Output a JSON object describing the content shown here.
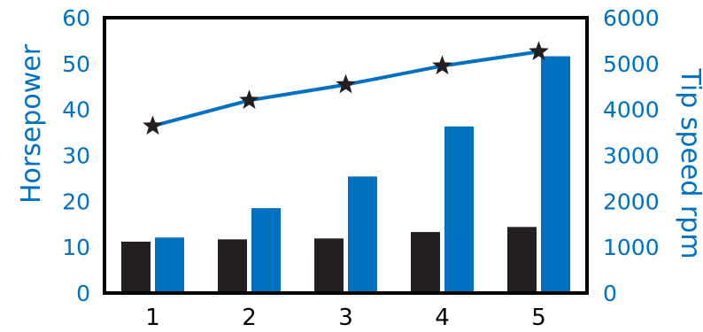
{
  "chart_data": {
    "type": "bar",
    "categories": [
      "1",
      "2",
      "3",
      "4",
      "5"
    ],
    "left_axis": {
      "label": "Horsepower",
      "ylim": [
        0,
        60
      ],
      "ticks": [
        "0",
        "10",
        "20",
        "30",
        "40",
        "50",
        "60"
      ]
    },
    "right_axis": {
      "label": "Tip speed rpm",
      "ylim": [
        0,
        6000
      ],
      "ticks": [
        "0",
        "1000",
        "2000",
        "3000",
        "4000",
        "5000",
        "6000"
      ]
    },
    "series": [
      {
        "kind": "bar",
        "axis": "left",
        "color": "#231f20",
        "values": [
          11.2,
          11.7,
          11.9,
          13.3,
          14.4
        ]
      },
      {
        "kind": "bar",
        "axis": "left",
        "color": "#0070c0",
        "values": [
          12.1,
          18.5,
          25.4,
          36.3,
          51.6
        ]
      },
      {
        "kind": "line",
        "axis": "right",
        "color": "#0070c0",
        "marker": "star",
        "marker_color": "#231f20",
        "values": [
          3640,
          4200,
          4540,
          4950,
          5260
        ]
      }
    ],
    "grid": false,
    "colors": {
      "axis_text": "#0070c0",
      "frame": "#000000"
    }
  }
}
